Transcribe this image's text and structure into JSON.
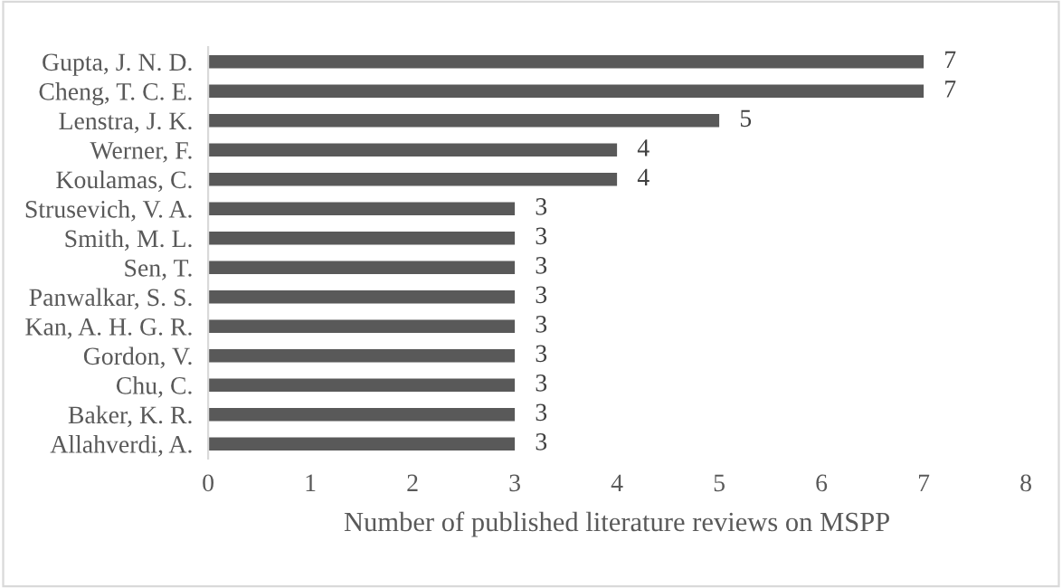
{
  "chart_data": {
    "type": "bar",
    "orientation": "horizontal",
    "xlabel": "Number of published literature reviews on MSPP",
    "categories": [
      "Gupta, J. N. D.",
      "Cheng, T. C. E.",
      "Lenstra, J. K.",
      "Werner, F.",
      "Koulamas, C.",
      "Strusevich, V. A.",
      "Smith, M. L.",
      "Sen, T.",
      "Panwalkar, S. S.",
      "Kan, A. H. G. R.",
      "Gordon, V.",
      "Chu, C.",
      "Baker, K. R.",
      "Allahverdi, A."
    ],
    "values": [
      7,
      7,
      5,
      4,
      4,
      3,
      3,
      3,
      3,
      3,
      3,
      3,
      3,
      3
    ],
    "color": "#595959",
    "xlim": [
      0,
      8
    ],
    "xticks": [
      0,
      1,
      2,
      3,
      4,
      5,
      6,
      7,
      8
    ],
    "data_labels": true,
    "grid": false,
    "legend": false
  }
}
